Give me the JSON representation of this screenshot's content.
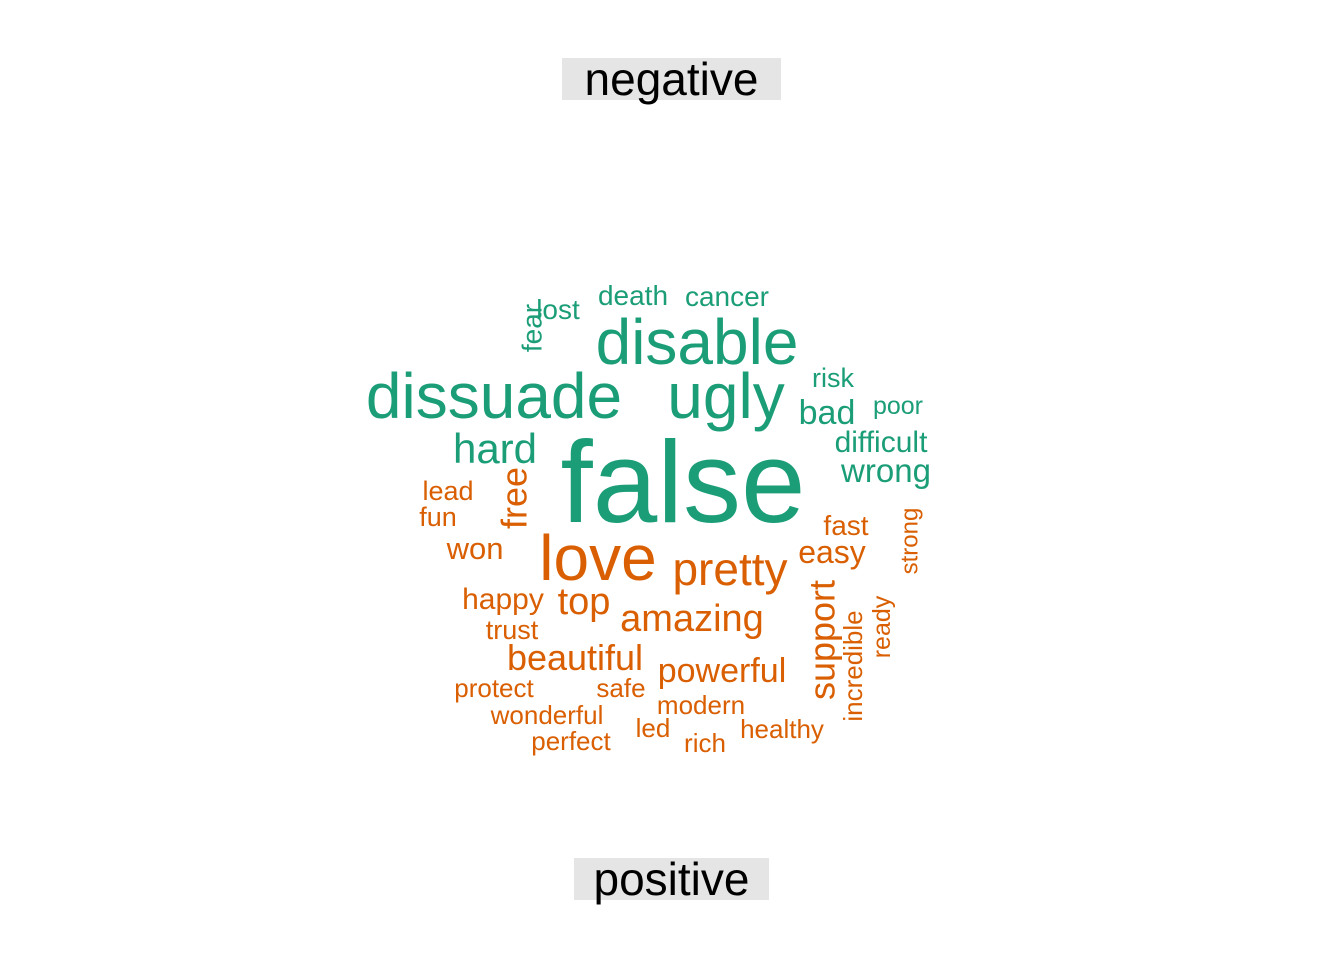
{
  "chart_data": {
    "type": "wordcloud",
    "groups": [
      {
        "label": "negative",
        "color": "#1b9e77",
        "words": [
          "false",
          "dissuade",
          "disable",
          "ugly",
          "hard",
          "death",
          "cancer",
          "lost",
          "fear",
          "risk",
          "bad",
          "poor",
          "difficult",
          "wrong"
        ]
      },
      {
        "label": "positive",
        "color": "#d95f02",
        "words": [
          "love",
          "pretty",
          "easy",
          "fast",
          "free",
          "lead",
          "fun",
          "won",
          "happy",
          "top",
          "amazing",
          "trust",
          "beautiful",
          "powerful",
          "support",
          "incredible",
          "ready",
          "strong",
          "protect",
          "safe",
          "modern",
          "wonderful",
          "led",
          "healthy",
          "perfect",
          "rich"
        ]
      }
    ]
  }
}
